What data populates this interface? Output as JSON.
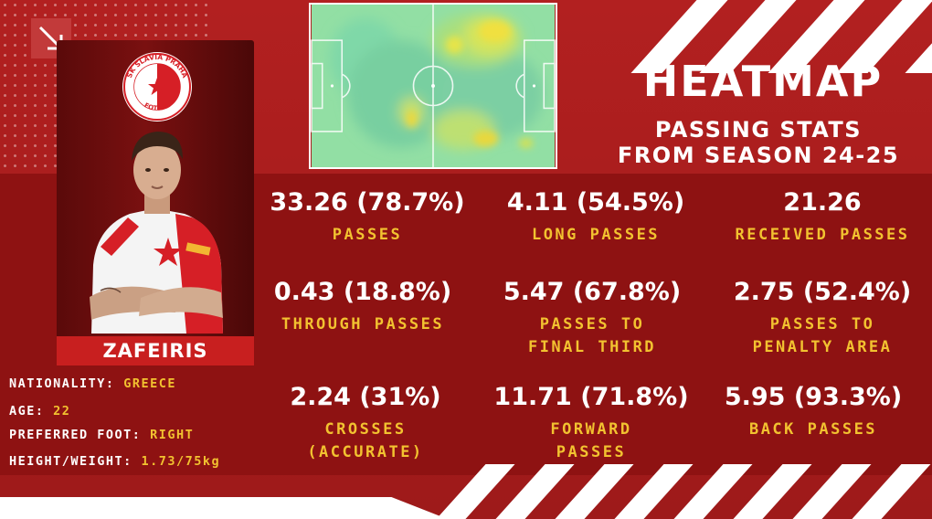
{
  "colors": {
    "background": "#a71d1d",
    "band": "#8e1212",
    "accent": "#f2c230",
    "text": "#ffffff",
    "pitch": "#8fe0a3"
  },
  "icons": {
    "corner": "arrow-down-right-icon",
    "club": "sk-slavia-praha-crest"
  },
  "crest": {
    "text": "SK SLAVIA PRAHA",
    "sub": "FOTBAL"
  },
  "player": {
    "name": "ZAFEIRIS",
    "details": [
      {
        "label": "NATIONALITY:",
        "value": "GREECE"
      },
      {
        "label": "AGE:",
        "value": "22"
      },
      {
        "label": "PREFERRED FOOT:",
        "value": "RIGHT"
      },
      {
        "label": "HEIGHT/WEIGHT:",
        "value": "1.73/75kg"
      }
    ]
  },
  "header": {
    "title": "HEATMAP",
    "subtitle_line1": "PASSING STATS",
    "subtitle_line2": "FROM SEASON 24-25"
  },
  "stats": [
    {
      "value": "33.26 (78.7%)",
      "label_line1": "PASSES",
      "label_line2": ""
    },
    {
      "value": "4.11 (54.5%)",
      "label_line1": "LONG PASSES",
      "label_line2": ""
    },
    {
      "value": "21.26",
      "label_line1": "RECEIVED PASSES",
      "label_line2": ""
    },
    {
      "value": "0.43 (18.8%)",
      "label_line1": "THROUGH PASSES",
      "label_line2": ""
    },
    {
      "value": "5.47 (67.8%)",
      "label_line1": "PASSES TO",
      "label_line2": "FINAL THIRD"
    },
    {
      "value": "2.75 (52.4%)",
      "label_line1": "PASSES TO",
      "label_line2": "PENALTY AREA"
    },
    {
      "value": "2.24 (31%)",
      "label_line1": "CROSSES",
      "label_line2": "(ACCURATE)"
    },
    {
      "value": "11.71 (71.8%)",
      "label_line1": "FORWARD",
      "label_line2": "PASSES"
    },
    {
      "value": "5.95 (93.3%)",
      "label_line1": "BACK PASSES",
      "label_line2": ""
    }
  ]
}
